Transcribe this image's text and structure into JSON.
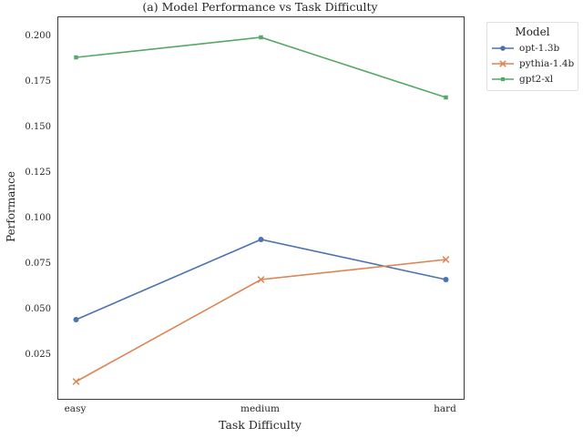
{
  "figure": {
    "title": "(a) Model Performance vs Task Difficulty",
    "xlabel": "Task Difficulty",
    "ylabel": "Performance"
  },
  "legend": {
    "title": "Model"
  },
  "colors": {
    "blue": "#4c72b0",
    "orange": "#dd8452",
    "green": "#55a868",
    "spine": "#3a3a3a",
    "text": "#262626"
  },
  "chart_data": {
    "type": "line",
    "title": "(a) Model Performance vs Task Difficulty",
    "xlabel": "Task Difficulty",
    "ylabel": "Performance",
    "categories": [
      "easy",
      "medium",
      "hard"
    ],
    "series": [
      {
        "name": "opt-1.3b",
        "values": [
          0.045,
          0.089,
          0.067
        ],
        "color": "#4c72b0",
        "marker": "circle"
      },
      {
        "name": "pythia-1.4b",
        "values": [
          0.011,
          0.067,
          0.078
        ],
        "color": "#dd8452",
        "marker": "x"
      },
      {
        "name": "gpt2-xl",
        "values": [
          0.189,
          0.2,
          0.167
        ],
        "color": "#55a868",
        "marker": "square"
      }
    ],
    "yticks": [
      0.025,
      0.05,
      0.075,
      0.1,
      0.125,
      0.15,
      0.175,
      0.2
    ],
    "ytick_labels": [
      "0.025",
      "0.050",
      "0.075",
      "0.100",
      "0.125",
      "0.150",
      "0.175",
      "0.200"
    ],
    "ylim": [
      0.0015,
      0.211
    ],
    "grid": false,
    "legend_title": "Model",
    "legend_position": "outside-top-right"
  }
}
